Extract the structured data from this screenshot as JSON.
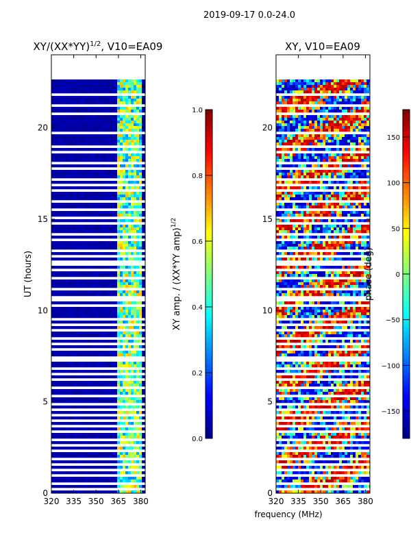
{
  "suptitle": "2019-09-17 0.0-24.0",
  "xlabel_shared": "frequency (MHz)",
  "chart_data": [
    {
      "type": "heatmap",
      "id": "amp",
      "title": "XY/(XX*YY)^1/2, V10=EA09",
      "title_main": "XY/(XX*YY)",
      "title_exp": "1/2",
      "title_tail": ", V10=EA09",
      "xlabel": "",
      "ylabel": "UT (hours)",
      "xlim": [
        320,
        383
      ],
      "ylim": [
        0,
        24
      ],
      "xticks": [
        320,
        335,
        350,
        365,
        380
      ],
      "yticks": [
        0,
        5,
        10,
        15,
        20
      ],
      "data_extent_hours": [
        0,
        22.8
      ],
      "gap_hours": [
        22.8,
        21.9,
        21.3,
        20.9,
        19.8,
        19.1,
        18.7,
        18.2,
        17.8,
        17.2,
        16.9,
        16.6,
        16.1,
        15.6,
        15.2,
        14.9,
        14.3,
        13.9,
        13.4,
        13.0,
        12.8,
        12.6,
        12.3,
        11.9,
        11.3,
        10.8,
        10.6,
        10.4,
        9.6,
        9.3,
        9.0,
        8.6,
        8.3,
        7.9,
        7.5,
        7.3,
        6.9,
        6.6,
        6.3,
        5.8,
        5.4,
        5.0,
        4.6,
        4.3,
        4.0,
        3.7,
        3.4,
        3.0,
        2.7,
        2.4,
        2.0,
        1.7,
        1.3,
        1.0,
        0.6,
        0.3
      ],
      "colorbar": {
        "label": "XY amp. / (XX*YY amp)^1/2",
        "label_main": "XY amp. / (XX*YY amp)",
        "label_exp": "1/2",
        "range": [
          0.0,
          1.0
        ],
        "ticks": [
          "0.0",
          "0.2",
          "0.4",
          "0.6",
          "0.8",
          "1.0"
        ]
      }
    },
    {
      "type": "heatmap",
      "id": "phase",
      "title": "XY, V10=EA09",
      "xlabel": "frequency (MHz)",
      "ylabel": "",
      "xlim": [
        320,
        383
      ],
      "ylim": [
        0,
        24
      ],
      "xticks": [
        320,
        335,
        350,
        365,
        380
      ],
      "yticks": [
        0,
        5,
        10,
        15,
        20
      ],
      "data_extent_hours": [
        0,
        22.8
      ],
      "colorbar": {
        "label": "phase (deg)",
        "range": [
          -180,
          180
        ],
        "ticks": [
          "−150",
          "−100",
          "−50",
          "0",
          "50",
          "100",
          "150"
        ],
        "tick_values": [
          -150,
          -100,
          -50,
          0,
          50,
          100,
          150
        ]
      }
    }
  ],
  "colors": {
    "jet": [
      "#00007f",
      "#0000ff",
      "#007fff",
      "#00ffff",
      "#7fff7f",
      "#ffff00",
      "#ff7f00",
      "#ff0000",
      "#7f0000"
    ]
  }
}
